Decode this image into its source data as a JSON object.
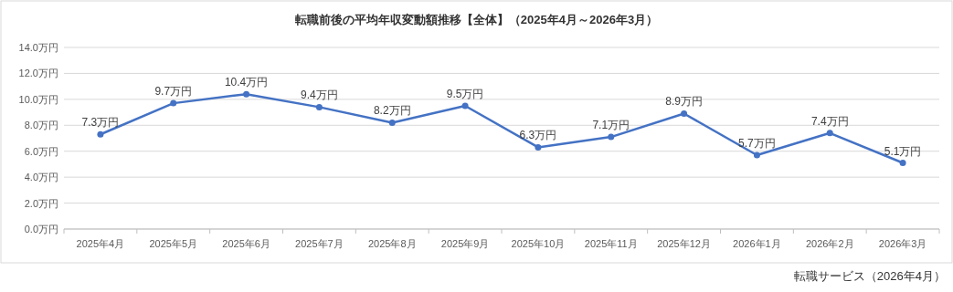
{
  "chart_data": {
    "type": "line",
    "title": "転職前後の平均年収変動額推移【全体】（2025年4月～2026年3月）",
    "categories": [
      "2025年4月",
      "2025年5月",
      "2025年6月",
      "2025年7月",
      "2025年8月",
      "2025年9月",
      "2025年10月",
      "2025年11月",
      "2025年12月",
      "2026年1月",
      "2026年2月",
      "2026年3月"
    ],
    "values": [
      7.3,
      9.7,
      10.4,
      9.4,
      8.2,
      9.5,
      6.3,
      7.1,
      8.9,
      5.7,
      7.4,
      5.1
    ],
    "value_labels": [
      "7.3万円",
      "9.7万円",
      "10.4万円",
      "9.4万円",
      "8.2万円",
      "9.5万円",
      "6.3万円",
      "7.1万円",
      "8.9万円",
      "5.7万円",
      "7.4万円",
      "5.1万円"
    ],
    "color": "#4472c4",
    "marker": "circle",
    "grid": "y",
    "ylim": [
      0,
      14
    ],
    "yticks": [
      {
        "value": 0,
        "label": "0.0万円"
      },
      {
        "value": 2,
        "label": "2.0万円"
      },
      {
        "value": 4,
        "label": "4.0万円"
      },
      {
        "value": 6,
        "label": "6.0万円"
      },
      {
        "value": 8,
        "label": "8.0万円"
      },
      {
        "value": 10,
        "label": "10.0万円"
      },
      {
        "value": 12,
        "label": "12.0万円"
      },
      {
        "value": 14,
        "label": "14.0万円"
      }
    ],
    "annotations": [
      "転職サービス（2026年4月）"
    ]
  }
}
